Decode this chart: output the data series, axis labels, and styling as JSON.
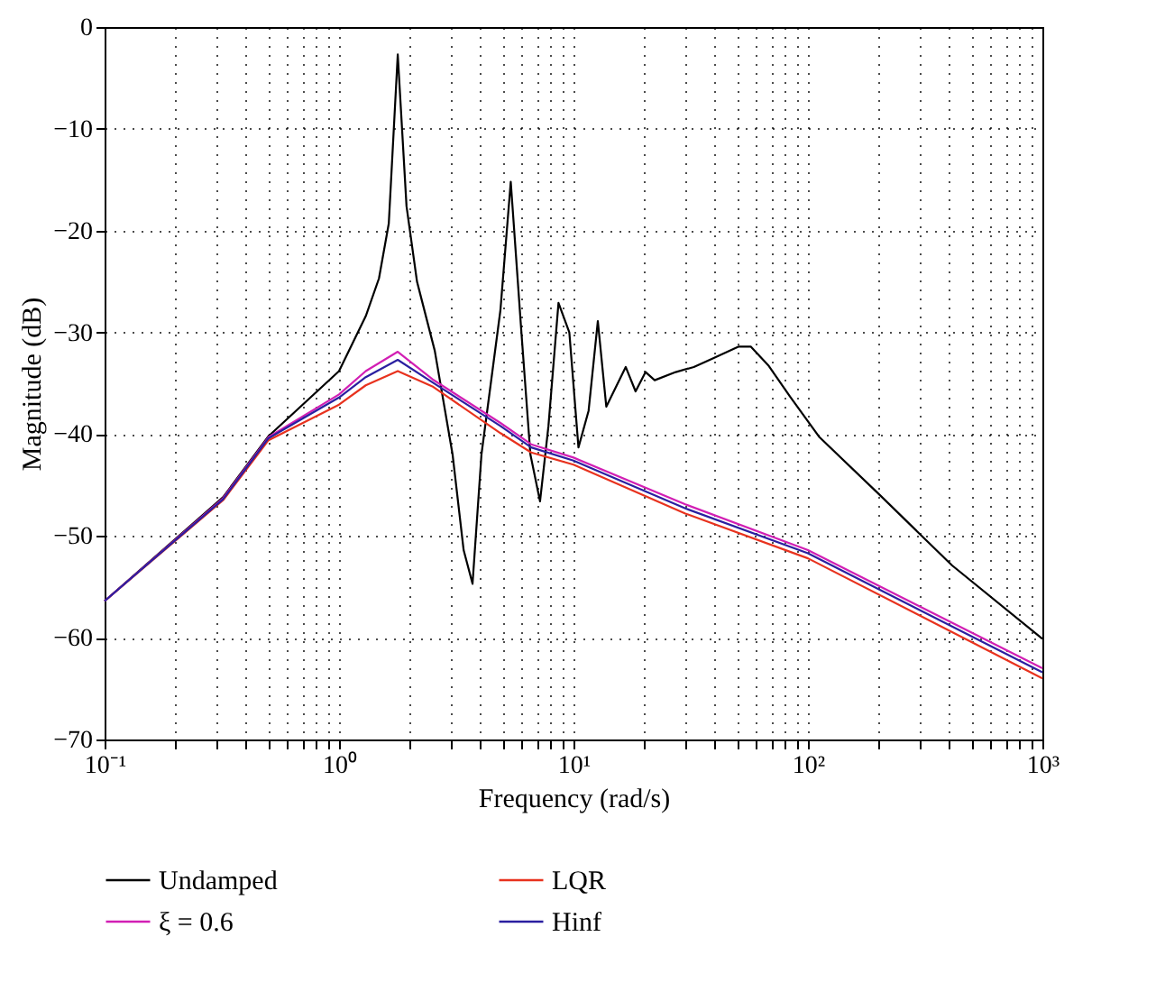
{
  "chart_data": {
    "type": "line",
    "xlabel": "Frequency (rad/s)",
    "ylabel": "Magnitude (dB)",
    "log": "x",
    "grid": true,
    "legend": "bottom",
    "line_style": "solid",
    "marker": "none",
    "xlim": [
      0.1,
      1000
    ],
    "ylim": [
      -70,
      0
    ],
    "xticks": [
      {
        "value": 0.1,
        "label": "10⁻¹"
      },
      {
        "value": 0.2,
        "label": null
      },
      {
        "value": 0.3,
        "label": null
      },
      {
        "value": 0.4,
        "label": null
      },
      {
        "value": 0.5,
        "label": null
      },
      {
        "value": 0.6,
        "label": null
      },
      {
        "value": 0.7,
        "label": null
      },
      {
        "value": 0.8,
        "label": null
      },
      {
        "value": 0.9,
        "label": null
      },
      {
        "value": 1,
        "label": "10⁰"
      },
      {
        "value": 2,
        "label": null
      },
      {
        "value": 3,
        "label": null
      },
      {
        "value": 4,
        "label": null
      },
      {
        "value": 5,
        "label": null
      },
      {
        "value": 6,
        "label": null
      },
      {
        "value": 7,
        "label": null
      },
      {
        "value": 8,
        "label": null
      },
      {
        "value": 9,
        "label": null
      },
      {
        "value": 10,
        "label": "10¹"
      },
      {
        "value": 20,
        "label": null
      },
      {
        "value": 30,
        "label": null
      },
      {
        "value": 40,
        "label": null
      },
      {
        "value": 50,
        "label": null
      },
      {
        "value": 60,
        "label": null
      },
      {
        "value": 70,
        "label": null
      },
      {
        "value": 80,
        "label": null
      },
      {
        "value": 90,
        "label": null
      },
      {
        "value": 100,
        "label": "10²"
      },
      {
        "value": 200,
        "label": null
      },
      {
        "value": 300,
        "label": null
      },
      {
        "value": 400,
        "label": null
      },
      {
        "value": 500,
        "label": null
      },
      {
        "value": 600,
        "label": null
      },
      {
        "value": 700,
        "label": null
      },
      {
        "value": 800,
        "label": null
      },
      {
        "value": 900,
        "label": null
      },
      {
        "value": 1000,
        "label": "10³"
      }
    ],
    "yticks": [
      -70,
      -60,
      -50,
      -40,
      -30,
      -20,
      -10,
      0
    ],
    "series": [
      {
        "name": "Undamped",
        "color": "#000000",
        "x": [
          0.1,
          0.32,
          0.5,
          1,
          1.3,
          1.48,
          1.63,
          1.78,
          1.94,
          2.15,
          2.56,
          3.05,
          3.4,
          3.71,
          4.05,
          4.88,
          5.4,
          6.0,
          6.55,
          7.2,
          7.82,
          8.63,
          9.6,
          10.5,
          11.6,
          12.7,
          13.8,
          16.7,
          18.4,
          20.3,
          22.2,
          27.3,
          32.6,
          38.9,
          50.7,
          57,
          68.1,
          83.8,
          112,
          203,
          412,
          1000
        ],
        "values": [
          -56.4,
          -46.2,
          -40.2,
          -33.8,
          -28.4,
          -24.7,
          -19.3,
          -2.7,
          -17.6,
          -25,
          -31.8,
          -42,
          -51.4,
          -54.7,
          -42,
          -27.8,
          -15.2,
          -30.1,
          -42,
          -46.6,
          -39.2,
          -27.1,
          -30,
          -41.3,
          -37.7,
          -28.9,
          -37.3,
          -33.4,
          -35.8,
          -33.9,
          -34.7,
          -33.9,
          -33.4,
          -32.6,
          -31.4,
          -31.4,
          -33.3,
          -36.3,
          -40.3,
          -46,
          -52.9,
          -60.1
        ]
      },
      {
        "name": "LQR",
        "color": "#e8321e",
        "x": [
          0.1,
          0.32,
          0.5,
          1,
          1.3,
          1.78,
          2.5,
          4.88,
          6.6,
          10,
          30,
          100,
          1000
        ],
        "values": [
          -56.4,
          -46.5,
          -40.6,
          -37.1,
          -35.2,
          -33.8,
          -35.3,
          -39.9,
          -41.8,
          -43,
          -47.8,
          -52.2,
          -64
        ]
      },
      {
        "name": "ξ = 0.6",
        "color": "#d21fb4",
        "x": [
          0.1,
          0.32,
          0.5,
          1,
          1.3,
          1.78,
          2.5,
          4.88,
          6.6,
          10,
          30,
          100,
          1000
        ],
        "values": [
          -56.4,
          -46.3,
          -40.3,
          -36.1,
          -33.8,
          -31.9,
          -34.6,
          -38.9,
          -41,
          -42.3,
          -46.9,
          -51.4,
          -63
        ]
      },
      {
        "name": "Hinf",
        "color": "#2a1fa0",
        "x": [
          0.1,
          0.32,
          0.5,
          1,
          1.3,
          1.78,
          2.5,
          4.88,
          6.6,
          10,
          30,
          100,
          1000
        ],
        "values": [
          -56.4,
          -46.4,
          -40.4,
          -36.4,
          -34.4,
          -32.7,
          -34.9,
          -39.2,
          -41.3,
          -42.6,
          -47.3,
          -51.7,
          -63.4
        ]
      }
    ]
  }
}
